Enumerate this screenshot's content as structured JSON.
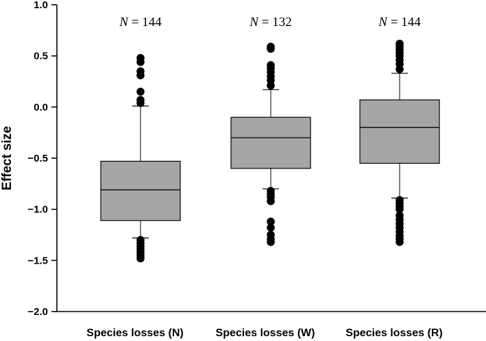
{
  "chart_data": {
    "type": "box",
    "ylabel": "Effect size",
    "ylim": [
      -2.0,
      1.0
    ],
    "yticks": [
      "1.0",
      "0.5",
      "0.0",
      "−0.5",
      "−1.0",
      "−1.5",
      "−2.0"
    ],
    "ytick_values": [
      1.0,
      0.5,
      0.0,
      -0.5,
      -1.0,
      -1.5,
      -2.0
    ],
    "grid": false,
    "box_color": "#a6a6a6",
    "categories": [
      "Species losses (N)",
      "Species losses (W)",
      "Species losses (R)"
    ],
    "n_labels": [
      {
        "prefix": "N",
        "text": " = 144"
      },
      {
        "prefix": "N",
        "text": " = 132"
      },
      {
        "prefix": "N",
        "text": " = 144"
      }
    ],
    "boxes": [
      {
        "whisker_low": -1.28,
        "q1": -1.11,
        "median": -0.81,
        "q3": -0.53,
        "whisker_high": 0.01,
        "outliers": [
          0.48,
          0.44,
          0.35,
          0.31,
          0.15,
          0.07,
          0.04,
          -1.3,
          -1.33,
          -1.36,
          -1.39,
          -1.42,
          -1.45,
          -1.48
        ]
      },
      {
        "whisker_low": -0.8,
        "q1": -0.6,
        "median": -0.3,
        "q3": -0.1,
        "whisker_high": 0.17,
        "outliers": [
          0.59,
          0.57,
          0.41,
          0.38,
          0.34,
          0.3,
          0.26,
          0.21,
          -0.82,
          -0.85,
          -0.88,
          -0.92,
          -1.12,
          -1.18,
          -1.25,
          -1.29,
          -1.32
        ]
      },
      {
        "whisker_low": -0.89,
        "q1": -0.55,
        "median": -0.2,
        "q3": 0.07,
        "whisker_high": 0.33,
        "outliers": [
          0.62,
          0.59,
          0.56,
          0.53,
          0.5,
          0.46,
          0.42,
          0.37,
          -0.91,
          -0.94,
          -0.97,
          -1.0,
          -1.06,
          -1.1,
          -1.14,
          -1.18,
          -1.22,
          -1.26,
          -1.29,
          -1.32
        ]
      }
    ]
  }
}
